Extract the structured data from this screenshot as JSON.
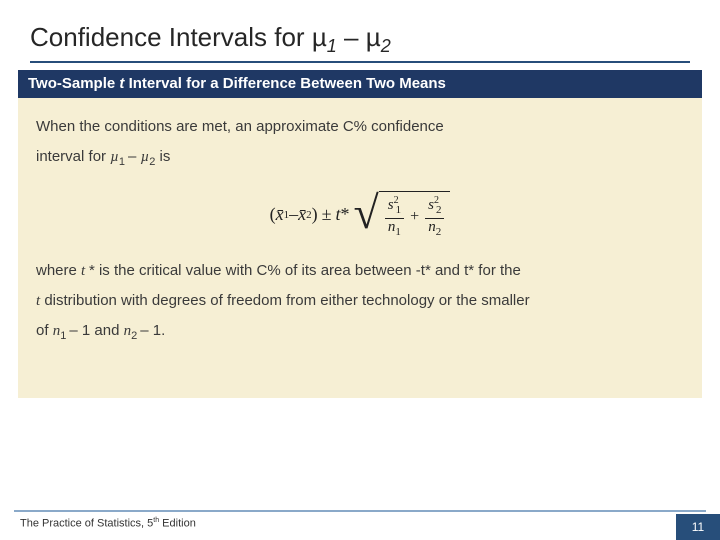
{
  "title": {
    "prefix": "Confidence Intervals for ",
    "mu": "µ",
    "sub1": "1",
    "dash": " – ",
    "sub2": "2"
  },
  "banner": {
    "pre": "Two-Sample ",
    "t": "t",
    "post": " Interval for a Difference Between Two Means"
  },
  "body": {
    "p1a": "When the conditions are met, an approximate C% confidence",
    "p1b_pre": "interval for ",
    "p1b_m1": "µ",
    "p1b_s1": "1 ",
    "p1b_mid": "– ",
    "p1b_m2": "µ",
    "p1b_s2": "2",
    "p1b_post": " is",
    "p2a_pre": "where ",
    "p2a_t": "t ",
    "p2a_star": "* ",
    "p2a_post": "is the critical value with C% of its area between -t* and t* for the",
    "p2b_t": "t",
    "p2b_post": " distribution with degrees of freedom from either technology or the smaller",
    "p2c_pre": "of ",
    "p2c_n1": "n",
    "p2c_s1": "1 ",
    "p2c_mid": "– 1 and ",
    "p2c_n2": "n",
    "p2c_s2": "2 ",
    "p2c_post": "– 1."
  },
  "formula": {
    "lpar": "(",
    "xbar": "x̄",
    "s1": "1",
    "minus": " – ",
    "s2": "2",
    "rpar": ")",
    "pm": " ± ",
    "t": "t ",
    "star": "*",
    "sqrt_sym": "√",
    "frac1_num_s": "s",
    "frac1_num_sub": "1",
    "frac1_num_sup": "2",
    "frac1_den_n": "n",
    "frac1_den_sub": "1",
    "plus": "+",
    "frac2_num_s": "s",
    "frac2_num_sub": "2",
    "frac2_num_sup": "2",
    "frac2_den_n": "n",
    "frac2_den_sub": "2"
  },
  "footer": {
    "text_pre": "The Practice of Statistics, 5",
    "th": "th",
    "text_post": " Edition",
    "page": "11"
  },
  "colors": {
    "banner_bg": "#1f3864",
    "body_bg": "#f6efd4",
    "rule": "#274e7a",
    "footer_rule": "#8aa9c9",
    "page_bg": "#274e7a"
  }
}
